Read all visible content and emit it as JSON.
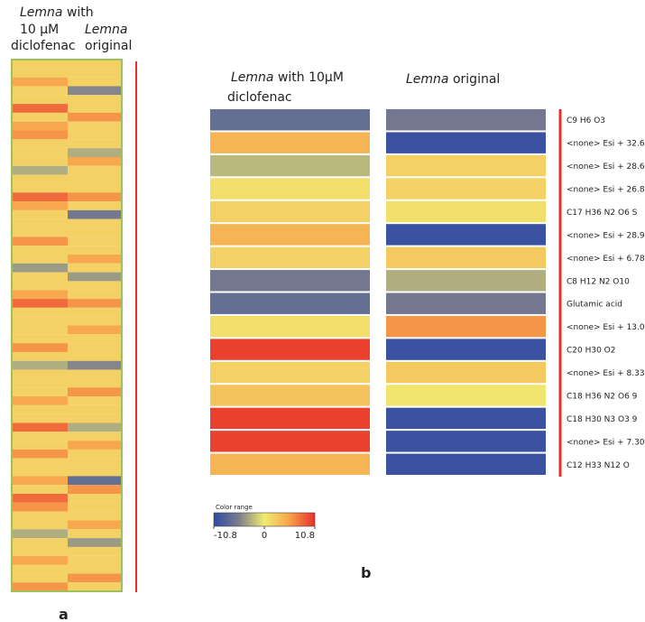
{
  "chart_data": [
    {
      "type": "heatmap",
      "panel": "a",
      "series": [
        {
          "name": [
            "Lemna",
            "with",
            "10 µM",
            "diclofenac"
          ],
          "values": [
            2,
            2,
            5,
            2,
            2,
            8,
            2,
            5,
            6,
            2,
            2,
            2,
            -3,
            2,
            2,
            8,
            5,
            2,
            2,
            2,
            6,
            2,
            2,
            -4,
            2,
            2,
            5,
            8,
            2,
            2,
            2,
            2,
            6,
            2,
            -3,
            2,
            2,
            2,
            5,
            2,
            2,
            8,
            2,
            2,
            6,
            2,
            2,
            5,
            2,
            8,
            6,
            2,
            2,
            -3,
            2,
            2,
            5,
            2,
            2,
            6
          ]
        },
        {
          "name": [
            "Lemna",
            "original"
          ],
          "values": [
            2,
            2,
            2,
            -5,
            2,
            2,
            6,
            2,
            2,
            2,
            -3,
            5,
            2,
            2,
            2,
            6,
            2,
            -6,
            2,
            2,
            2,
            2,
            5,
            2,
            -4,
            2,
            2,
            6,
            2,
            2,
            5,
            2,
            2,
            2,
            -5,
            2,
            2,
            6,
            2,
            2,
            2,
            -3,
            2,
            5,
            2,
            2,
            2,
            -7,
            6,
            2,
            2,
            2,
            5,
            2,
            -4,
            2,
            2,
            2,
            6,
            2
          ]
        }
      ],
      "zlim": [
        -10.8,
        10.8
      ],
      "colors": [
        "#2f4aa3",
        "#7c7d8c",
        "#f1ec72",
        "#f7a24b",
        "#e8302a"
      ]
    },
    {
      "type": "heatmap",
      "panel": "b",
      "categories": [
        "C9 H6 O3",
        "<none> Esi + 32.6",
        "<none> Esi + 28.6",
        "<none> Esi + 26.8",
        "C17 H36 N2 O6 S",
        "<none> Esi + 28.9",
        "<none> Esi + 6.78",
        "C8 H12 N2 O10",
        "Glutamic acid",
        "<none> Esi + 13.0",
        "C20 H30 O2",
        "<none> Esi + 8.33",
        "C18 H36 N2 O6 9",
        "C18 H30 N3 O3 9",
        "<none> Esi + 7.30",
        "C12 H33 N12 O"
      ],
      "series": [
        {
          "name": [
            "Lemna",
            "with 10µM",
            "diclofenac"
          ],
          "values": [
            -7,
            4,
            -2.5,
            1,
            2,
            4,
            2,
            -6,
            -7,
            1,
            10,
            2,
            3,
            10,
            10,
            4
          ]
        },
        {
          "name": [
            "Lemna",
            "original"
          ],
          "values": [
            -6,
            -10,
            2,
            2,
            1,
            -10,
            2.5,
            -3,
            -6,
            6,
            -10,
            2.5,
            0.5,
            -10,
            -10,
            -10
          ]
        }
      ],
      "zlim": [
        -10.8,
        10.8
      ],
      "colors": [
        "#2f4aa3",
        "#7c7d8c",
        "#f1ec72",
        "#f7a24b",
        "#e8302a"
      ],
      "colorbar": {
        "title": "Color range",
        "ticks": [
          -10.8,
          0,
          10.8
        ]
      }
    }
  ]
}
